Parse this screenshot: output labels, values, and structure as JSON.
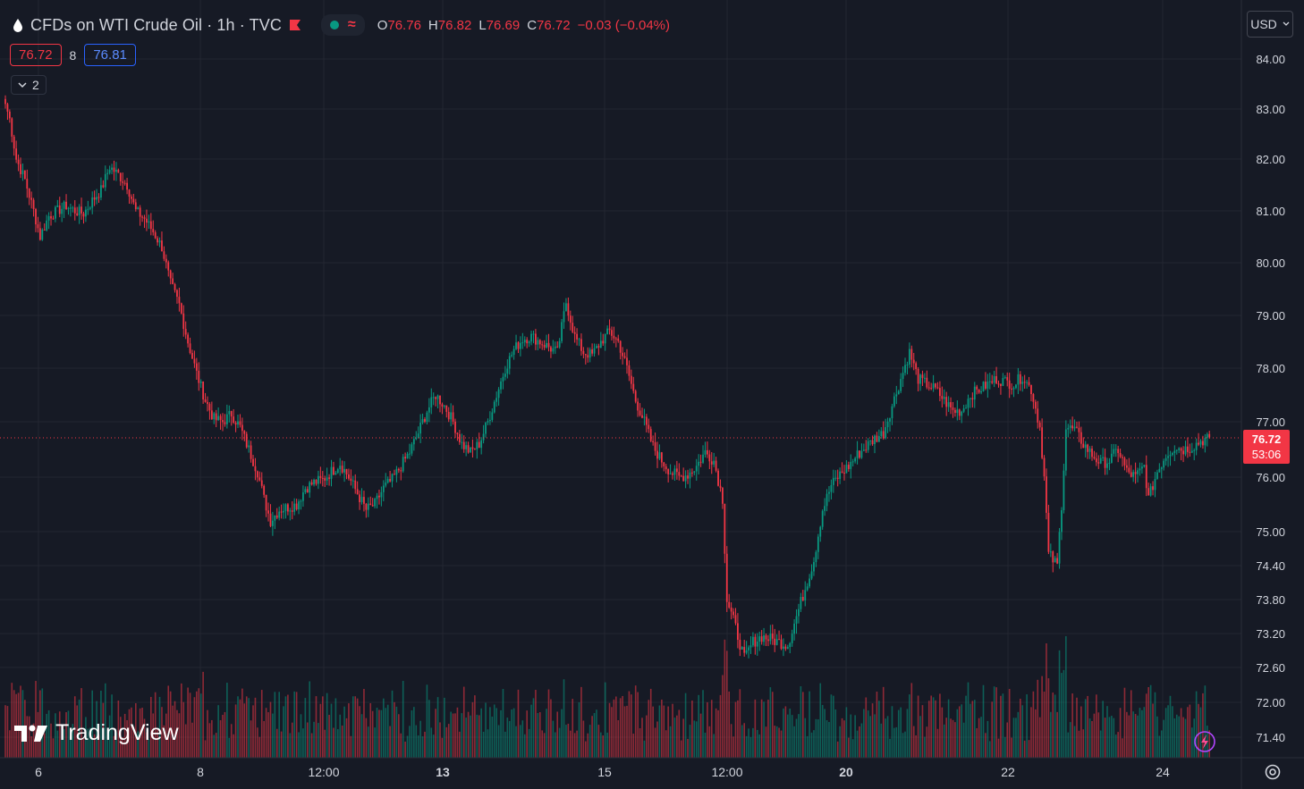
{
  "header": {
    "symbol_title": "CFDs on WTI Crude Oil · 1h · TVC",
    "ohlc": {
      "open_label": "O",
      "open": "76.76",
      "high_label": "H",
      "high": "76.82",
      "low_label": "L",
      "low": "76.69",
      "close_label": "C",
      "close": "76.72",
      "change": "−0.03 (−0.04%)"
    }
  },
  "bid_ask": {
    "bid": "76.72",
    "spread": "8",
    "ask": "76.81"
  },
  "indicators_toggle": {
    "count": "2"
  },
  "currency_selector": {
    "label": "USD"
  },
  "brand": {
    "name": "TradingView"
  },
  "price_badge": {
    "price": "76.72",
    "countdown": "53:06"
  },
  "colors": {
    "up": "#089981",
    "down": "#f23645",
    "background": "#161a25",
    "grid": "#232631",
    "text": "#d1d4dc"
  },
  "icons": [
    "oil-drop-icon",
    "red-flag-icon",
    "market-status-dot-icon",
    "wave-icon",
    "chevron-down-icon",
    "lightning-icon",
    "gear-icon",
    "tradingview-logo-icon"
  ],
  "chart_data": {
    "type": "candlestick",
    "interval": "1h",
    "y_axis_ticks": [
      "84.00",
      "83.00",
      "82.00",
      "81.00",
      "80.00",
      "79.00",
      "78.00",
      "77.00",
      "76.00",
      "75.00",
      "74.40",
      "73.80",
      "73.20",
      "72.60",
      "72.00",
      "71.40"
    ],
    "x_axis_ticks": [
      "6",
      "8",
      "12:00",
      "13",
      "15",
      "12:00",
      "20",
      "22",
      "24"
    ],
    "bold_x_ticks": [
      "13",
      "20"
    ],
    "last_price": 76.72,
    "price_path": [
      [
        0,
        83.1
      ],
      [
        2,
        82.8
      ],
      [
        5,
        82.0
      ],
      [
        9,
        81.6
      ],
      [
        13,
        81.0
      ],
      [
        16,
        80.5
      ],
      [
        20,
        80.9
      ],
      [
        24,
        81.0
      ],
      [
        28,
        81.1
      ],
      [
        32,
        81.0
      ],
      [
        36,
        80.95
      ],
      [
        40,
        81.2
      ],
      [
        44,
        81.4
      ],
      [
        48,
        81.85
      ],
      [
        52,
        81.7
      ],
      [
        56,
        81.5
      ],
      [
        60,
        81.0
      ],
      [
        64,
        80.85
      ],
      [
        68,
        80.6
      ],
      [
        72,
        80.3
      ],
      [
        76,
        79.6
      ],
      [
        80,
        79.2
      ],
      [
        84,
        78.5
      ],
      [
        88,
        77.9
      ],
      [
        92,
        77.4
      ],
      [
        96,
        77.05
      ],
      [
        100,
        77.0
      ],
      [
        104,
        77.15
      ],
      [
        108,
        76.9
      ],
      [
        112,
        76.5
      ],
      [
        116,
        76.1
      ],
      [
        119,
        75.6
      ],
      [
        122,
        75.2
      ],
      [
        126,
        75.4
      ],
      [
        130,
        75.45
      ],
      [
        134,
        75.5
      ],
      [
        138,
        75.8
      ],
      [
        142,
        75.9
      ],
      [
        146,
        75.95
      ],
      [
        150,
        76.1
      ],
      [
        154,
        76.25
      ],
      [
        158,
        76.0
      ],
      [
        162,
        75.7
      ],
      [
        166,
        75.4
      ],
      [
        170,
        75.5
      ],
      [
        174,
        75.8
      ],
      [
        178,
        75.95
      ],
      [
        182,
        76.2
      ],
      [
        186,
        76.45
      ],
      [
        190,
        76.8
      ],
      [
        194,
        77.2
      ],
      [
        198,
        77.5
      ],
      [
        202,
        77.3
      ],
      [
        206,
        77.0
      ],
      [
        210,
        76.6
      ],
      [
        214,
        76.45
      ],
      [
        218,
        76.6
      ],
      [
        222,
        77.0
      ],
      [
        226,
        77.5
      ],
      [
        230,
        78.0
      ],
      [
        234,
        78.35
      ],
      [
        238,
        78.55
      ],
      [
        242,
        78.6
      ],
      [
        246,
        78.5
      ],
      [
        250,
        78.4
      ],
      [
        254,
        78.3
      ],
      [
        258,
        79.25
      ],
      [
        262,
        78.6
      ],
      [
        266,
        78.3
      ],
      [
        270,
        78.25
      ],
      [
        274,
        78.5
      ],
      [
        278,
        78.7
      ],
      [
        282,
        78.5
      ],
      [
        286,
        78.0
      ],
      [
        290,
        77.4
      ],
      [
        294,
        77.0
      ],
      [
        298,
        76.55
      ],
      [
        302,
        76.3
      ],
      [
        306,
        76.1
      ],
      [
        310,
        76.0
      ],
      [
        314,
        76.05
      ],
      [
        318,
        76.2
      ],
      [
        322,
        76.45
      ],
      [
        326,
        76.3
      ],
      [
        330,
        75.6
      ],
      [
        332,
        73.8
      ],
      [
        336,
        73.3
      ],
      [
        340,
        72.75
      ],
      [
        344,
        73.05
      ],
      [
        348,
        73.15
      ],
      [
        352,
        73.1
      ],
      [
        356,
        73.05
      ],
      [
        360,
        73.0
      ],
      [
        364,
        73.5
      ],
      [
        368,
        74.0
      ],
      [
        372,
        74.5
      ],
      [
        376,
        75.4
      ],
      [
        380,
        75.85
      ],
      [
        384,
        76.05
      ],
      [
        388,
        76.2
      ],
      [
        392,
        76.4
      ],
      [
        396,
        76.55
      ],
      [
        400,
        76.7
      ],
      [
        404,
        76.8
      ],
      [
        408,
        77.3
      ],
      [
        412,
        77.8
      ],
      [
        416,
        78.3
      ],
      [
        420,
        77.8
      ],
      [
        424,
        77.7
      ],
      [
        428,
        77.6
      ],
      [
        432,
        77.4
      ],
      [
        436,
        77.2
      ],
      [
        440,
        77.2
      ],
      [
        444,
        77.5
      ],
      [
        448,
        77.6
      ],
      [
        452,
        77.7
      ],
      [
        456,
        77.8
      ],
      [
        460,
        77.75
      ],
      [
        464,
        77.7
      ],
      [
        468,
        77.85
      ],
      [
        472,
        77.6
      ],
      [
        476,
        76.9
      ],
      [
        478,
        76.0
      ],
      [
        480,
        74.6
      ],
      [
        484,
        74.4
      ],
      [
        486,
        75.5
      ],
      [
        488,
        76.9
      ],
      [
        492,
        76.85
      ],
      [
        496,
        76.6
      ],
      [
        500,
        76.4
      ],
      [
        504,
        76.25
      ],
      [
        508,
        76.3
      ],
      [
        512,
        76.5
      ],
      [
        516,
        76.1
      ],
      [
        520,
        76.0
      ],
      [
        524,
        76.2
      ],
      [
        526,
        75.6
      ],
      [
        530,
        76.1
      ],
      [
        534,
        76.4
      ],
      [
        538,
        76.55
      ],
      [
        542,
        76.5
      ],
      [
        546,
        76.55
      ],
      [
        550,
        76.65
      ],
      [
        554,
        76.72
      ]
    ]
  }
}
